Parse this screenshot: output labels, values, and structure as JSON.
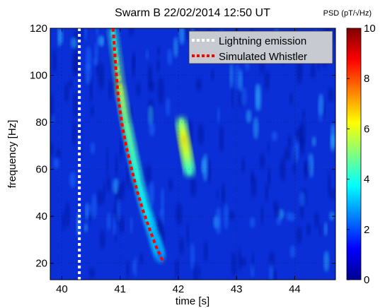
{
  "chart_data": {
    "type": "heatmap",
    "title": "Swarm B 22/02/2014 12:50 UT",
    "xlabel": "time [s]",
    "ylabel": "frequency [Hz]",
    "xlim": [
      39.8,
      44.7
    ],
    "ylim": [
      13,
      120
    ],
    "xticks": [
      40,
      41,
      42,
      43,
      44
    ],
    "yticks": [
      20,
      40,
      60,
      80,
      100,
      120
    ],
    "colorbar": {
      "label": "PSD (pT/√Hz)",
      "range": [
        0,
        10
      ],
      "ticks": [
        0,
        2,
        4,
        6,
        8,
        10
      ],
      "colormap": "jet"
    },
    "grid": true,
    "legend_position": "top-right",
    "series": [
      {
        "name": "Lightning emission",
        "style": "dotted",
        "color": "#ffffff",
        "x": [
          40.3,
          40.3
        ],
        "y": [
          13,
          120
        ]
      },
      {
        "name": "Simulated Whistler",
        "style": "dotted",
        "color": "#ff0000",
        "x": [
          40.88,
          40.92,
          40.97,
          41.04,
          41.12,
          41.2,
          41.3,
          41.4,
          41.5,
          41.62,
          41.75
        ],
        "y": [
          120,
          105,
          90,
          78,
          68,
          60,
          50,
          42,
          35,
          27,
          20
        ]
      }
    ],
    "intensity_features": [
      {
        "label": "whistler trace",
        "x": [
          40.88,
          41.0,
          41.1,
          41.2,
          41.3,
          41.45,
          41.6,
          41.7
        ],
        "y": [
          118,
          95,
          80,
          68,
          56,
          42,
          30,
          22
        ],
        "psd": [
          4,
          6,
          5,
          4.5,
          4,
          3.5,
          2.5,
          2
        ]
      },
      {
        "label": "secondary emission",
        "x": [
          42.05,
          42.1,
          42.15,
          42.2
        ],
        "y": [
          80,
          72,
          65,
          58
        ],
        "psd": [
          5,
          7,
          6,
          4
        ]
      }
    ]
  },
  "colors": {
    "background_low": "#00008f",
    "mid": "#00ffff",
    "peak": "#ff4000"
  }
}
